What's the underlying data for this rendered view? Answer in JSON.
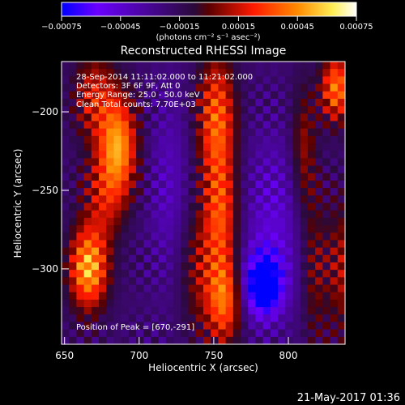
{
  "chart_data": {
    "type": "heatmap",
    "title": "Reconstructed RHESSI Image",
    "xlabel": "Heliocentric X (arcsec)",
    "ylabel": "Heliocentric Y (arcsec)",
    "xlim": [
      648,
      838
    ],
    "ylim": [
      -348,
      -168
    ],
    "x_ticks": [
      650,
      700,
      750,
      800
    ],
    "y_ticks": [
      -200,
      -250,
      -300
    ],
    "x_tick_labels": [
      "650",
      "700",
      "750",
      "800"
    ],
    "y_tick_labels": [
      "−200",
      "−250",
      "−300"
    ],
    "colorbar": {
      "range": [
        -0.00075,
        0.00075
      ],
      "ticks": [
        -0.00075,
        -0.00045,
        -0.00015,
        0.00015,
        0.00045,
        0.00075
      ],
      "tick_labels": [
        "−0.00075",
        "−0.00045",
        "−0.00015",
        "0.00015",
        "0.00045",
        "0.00075"
      ],
      "unit_label": "(photons cm⁻² s⁻¹ asec⁻²)",
      "colormap": [
        "#0000ff",
        "#6a00ff",
        "#3a0a6a",
        "#8a0000",
        "#ff2a00",
        "#ff9a00",
        "#ffff88",
        "#ffffff"
      ]
    },
    "annotations": [
      "28-Sep-2014 11:11:02.000 to 11:21:02.000",
      "Detectors: 3F 6F 9F, Att 0",
      "Energy Range: 25.0 - 50.0 keV",
      "Clean     Total counts: 7.70E+03"
    ],
    "peak_label": "Position of Peak = [670,-291]",
    "peak": {
      "x": 670,
      "y": -291
    },
    "sources": [
      {
        "x": 666,
        "y": -300,
        "amplitude": 0.00072,
        "sigma_x": 9,
        "sigma_y": 18
      },
      {
        "x": 686,
        "y": -222,
        "amplitude": 0.00065,
        "sigma_x": 9,
        "sigma_y": 22
      },
      {
        "x": 676,
        "y": -255,
        "amplitude": 0.0003,
        "sigma_x": 10,
        "sigma_y": 20
      },
      {
        "x": 670,
        "y": -190,
        "amplitude": 0.00035,
        "sigma_x": 10,
        "sigma_y": 20
      },
      {
        "x": 752,
        "y": -205,
        "amplitude": 0.00055,
        "sigma_x": 9,
        "sigma_y": 28
      },
      {
        "x": 755,
        "y": -265,
        "amplitude": 0.00045,
        "sigma_x": 8,
        "sigma_y": 25
      },
      {
        "x": 757,
        "y": -320,
        "amplitude": 0.00055,
        "sigma_x": 8,
        "sigma_y": 20
      },
      {
        "x": 740,
        "y": -300,
        "amplitude": 0.00025,
        "sigma_x": 10,
        "sigma_y": 30
      },
      {
        "x": 810,
        "y": -225,
        "amplitude": 0.0003,
        "sigma_x": 6,
        "sigma_y": 30
      },
      {
        "x": 818,
        "y": -300,
        "amplitude": 0.00025,
        "sigma_x": 6,
        "sigma_y": 35
      },
      {
        "x": 832,
        "y": -185,
        "amplitude": 0.0006,
        "sigma_x": 7,
        "sigma_y": 15
      },
      {
        "x": 835,
        "y": -300,
        "amplitude": 0.0003,
        "sigma_x": 6,
        "sigma_y": 30
      },
      {
        "x": 783,
        "y": -310,
        "amplitude": -0.0007,
        "sigma_x": 9,
        "sigma_y": 14
      },
      {
        "x": 790,
        "y": -270,
        "amplitude": -0.00025,
        "sigma_x": 15,
        "sigma_y": 40
      },
      {
        "x": 720,
        "y": -250,
        "amplitude": -0.0002,
        "sigma_x": 10,
        "sigma_y": 45
      }
    ]
  },
  "footer": {
    "date": "21-May-2017 01:36"
  }
}
